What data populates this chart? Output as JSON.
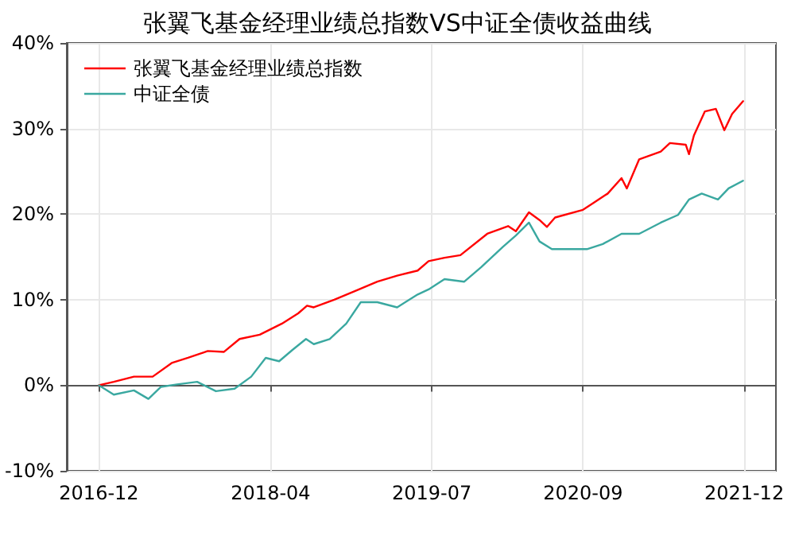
{
  "chart_data": {
    "type": "line",
    "title": "张翼飞基金经理业绩总指数VS中证全债收益曲线",
    "xlim": [
      "2016-09",
      "2022-03"
    ],
    "xticks": [
      "2016-12",
      "2018-04",
      "2019-07",
      "2020-09",
      "2021-12"
    ],
    "ylim": [
      -10,
      40
    ],
    "yticks": [
      {
        "value": -10,
        "label": "-10%"
      },
      {
        "value": 0,
        "label": "0%"
      },
      {
        "value": 10,
        "label": "10%"
      },
      {
        "value": 20,
        "label": "20%"
      },
      {
        "value": 30,
        "label": "30%"
      },
      {
        "value": 40,
        "label": "40%"
      }
    ],
    "grid": true,
    "legend": "top left",
    "marker": "none",
    "line_style": "solid",
    "series": [
      {
        "name": "张翼飞基金经理业绩总指数",
        "color": "#ff0000",
        "x": [
          "2016-12-01",
          "2017-01-12",
          "2017-03-10",
          "2017-05-02",
          "2017-06-25",
          "2017-08-10",
          "2017-10-05",
          "2017-11-20",
          "2018-01-03",
          "2018-03-01",
          "2018-05-03",
          "2018-06-18",
          "2018-07-13",
          "2018-08-01",
          "2018-09-28",
          "2018-11-25",
          "2019-01-28",
          "2019-03-25",
          "2019-05-22",
          "2019-06-22",
          "2019-08-06",
          "2019-09-20",
          "2019-12-05",
          "2020-02-02",
          "2020-02-24",
          "2020-04-01",
          "2020-05-01",
          "2020-05-22",
          "2020-06-14",
          "2020-09-01",
          "2020-11-10",
          "2020-12-19",
          "2021-01-03",
          "2021-02-07",
          "2021-04-09",
          "2021-05-05",
          "2021-06-19",
          "2021-06-28",
          "2021-07-12",
          "2021-08-12",
          "2021-09-12",
          "2021-10-06",
          "2021-10-28",
          "2021-11-28"
        ],
        "values": [
          0,
          0.4,
          1.0,
          1.0,
          2.6,
          3.2,
          4.0,
          3.9,
          5.4,
          5.9,
          7.2,
          8.4,
          9.3,
          9.1,
          10.0,
          11.0,
          12.1,
          12.8,
          13.4,
          14.5,
          14.9,
          15.2,
          17.7,
          18.6,
          18.0,
          20.2,
          19.3,
          18.5,
          19.6,
          20.5,
          22.4,
          24.2,
          23.0,
          26.4,
          27.3,
          28.3,
          28.1,
          27.0,
          29.2,
          32.0,
          32.3,
          29.8,
          31.7,
          33.2
        ]
      },
      {
        "name": "中证全债",
        "color": "#3aa8a0",
        "x": [
          "2016-12-01",
          "2017-01-12",
          "2017-03-10",
          "2017-04-20",
          "2017-05-25",
          "2017-07-10",
          "2017-09-05",
          "2017-10-28",
          "2017-12-20",
          "2018-02-05",
          "2018-03-18",
          "2018-04-25",
          "2018-06-01",
          "2018-07-10",
          "2018-08-01",
          "2018-09-15",
          "2018-11-01",
          "2018-12-12",
          "2019-01-28",
          "2019-03-25",
          "2019-05-22",
          "2019-06-22",
          "2019-08-06",
          "2019-10-01",
          "2019-11-18",
          "2020-01-19",
          "2020-02-24",
          "2020-04-01",
          "2020-05-01",
          "2020-06-05",
          "2020-07-28",
          "2020-09-12",
          "2020-10-27",
          "2020-12-19",
          "2021-02-07",
          "2021-04-09",
          "2021-05-28",
          "2021-06-28",
          "2021-08-03",
          "2021-09-18",
          "2021-10-18",
          "2021-11-28"
        ],
        "values": [
          0,
          -1.1,
          -0.6,
          -1.6,
          -0.2,
          0.1,
          0.4,
          -0.7,
          -0.4,
          1.0,
          3.2,
          2.8,
          4.1,
          5.4,
          4.8,
          5.4,
          7.2,
          9.7,
          9.7,
          9.1,
          10.6,
          11.2,
          12.4,
          12.1,
          13.8,
          16.2,
          17.5,
          19.0,
          16.8,
          15.9,
          15.9,
          15.9,
          16.5,
          17.7,
          17.7,
          19.0,
          19.9,
          21.7,
          22.4,
          21.7,
          23.0,
          23.9
        ]
      }
    ]
  }
}
